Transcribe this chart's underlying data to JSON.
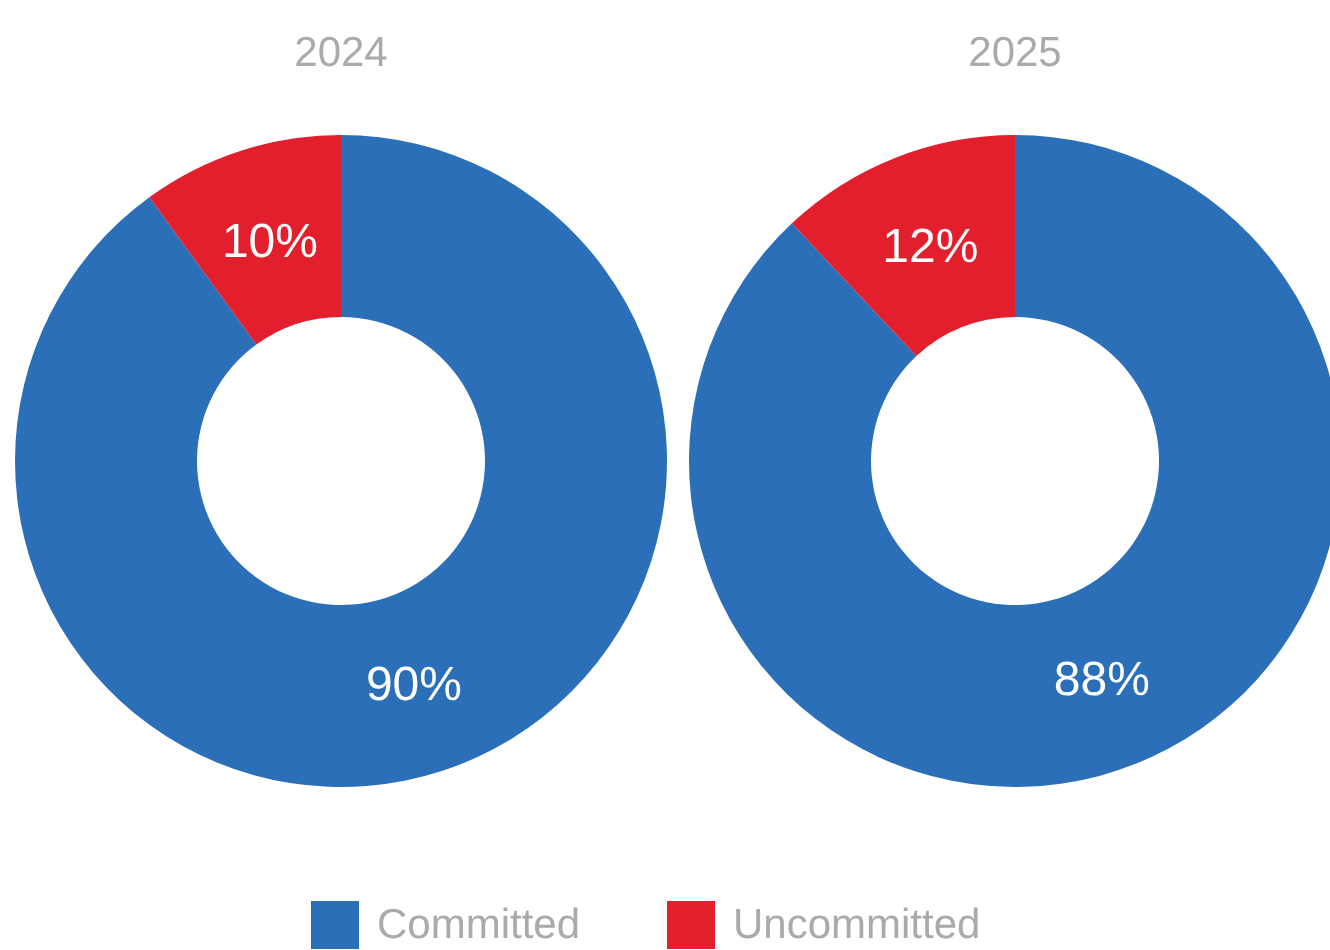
{
  "chart_data": [
    {
      "type": "donut",
      "title": "2024",
      "categories": [
        "Committed",
        "Uncommitted"
      ],
      "values": [
        90,
        10
      ],
      "colors": [
        "#2a6fb8",
        "#e31e2d"
      ],
      "value_labels": [
        "90%",
        "10%"
      ],
      "legend": "bottom"
    },
    {
      "type": "donut",
      "title": "2025",
      "categories": [
        null,
        null
      ],
      "values": [
        88,
        12
      ],
      "colors": [
        "#2a6fb8",
        "#e31e2d"
      ],
      "value_labels": [
        "88%",
        "12%"
      ]
    }
  ]
}
